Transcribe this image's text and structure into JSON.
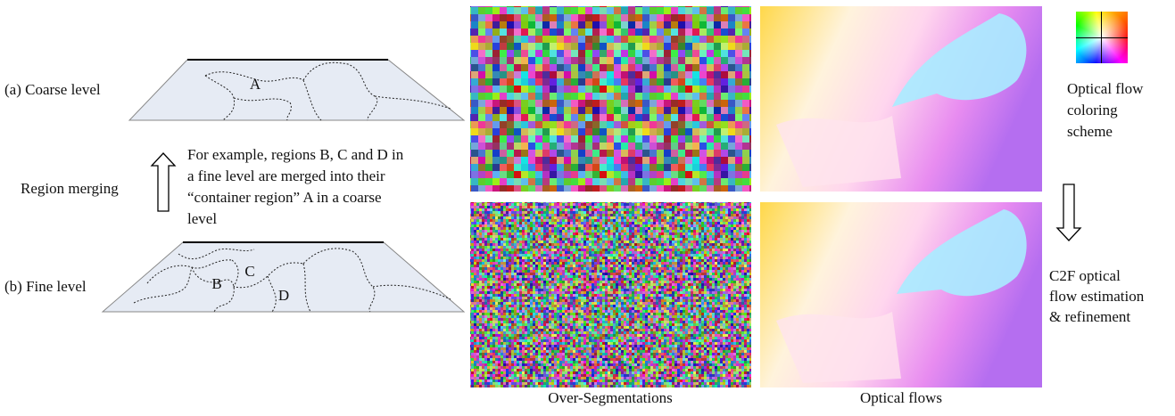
{
  "left": {
    "coarse_label": "(a) Coarse level",
    "fine_label": "(b) Fine level",
    "merge_label": "Region merging",
    "example_lines": [
      "For example, regions B, C and D in",
      "a fine level are merged into their",
      "“container region” A in a coarse",
      "level"
    ],
    "coarse_regions": [
      "A"
    ],
    "fine_regions": [
      "B",
      "C",
      "D"
    ]
  },
  "images": {
    "segmentation_caption": "Over-Segmentations",
    "flow_caption": "Optical flows"
  },
  "right": {
    "scheme_lines": [
      "Optical flow",
      "coloring",
      "scheme"
    ],
    "c2f_lines": [
      "C2F optical",
      "flow estimation",
      "& refinement"
    ]
  }
}
